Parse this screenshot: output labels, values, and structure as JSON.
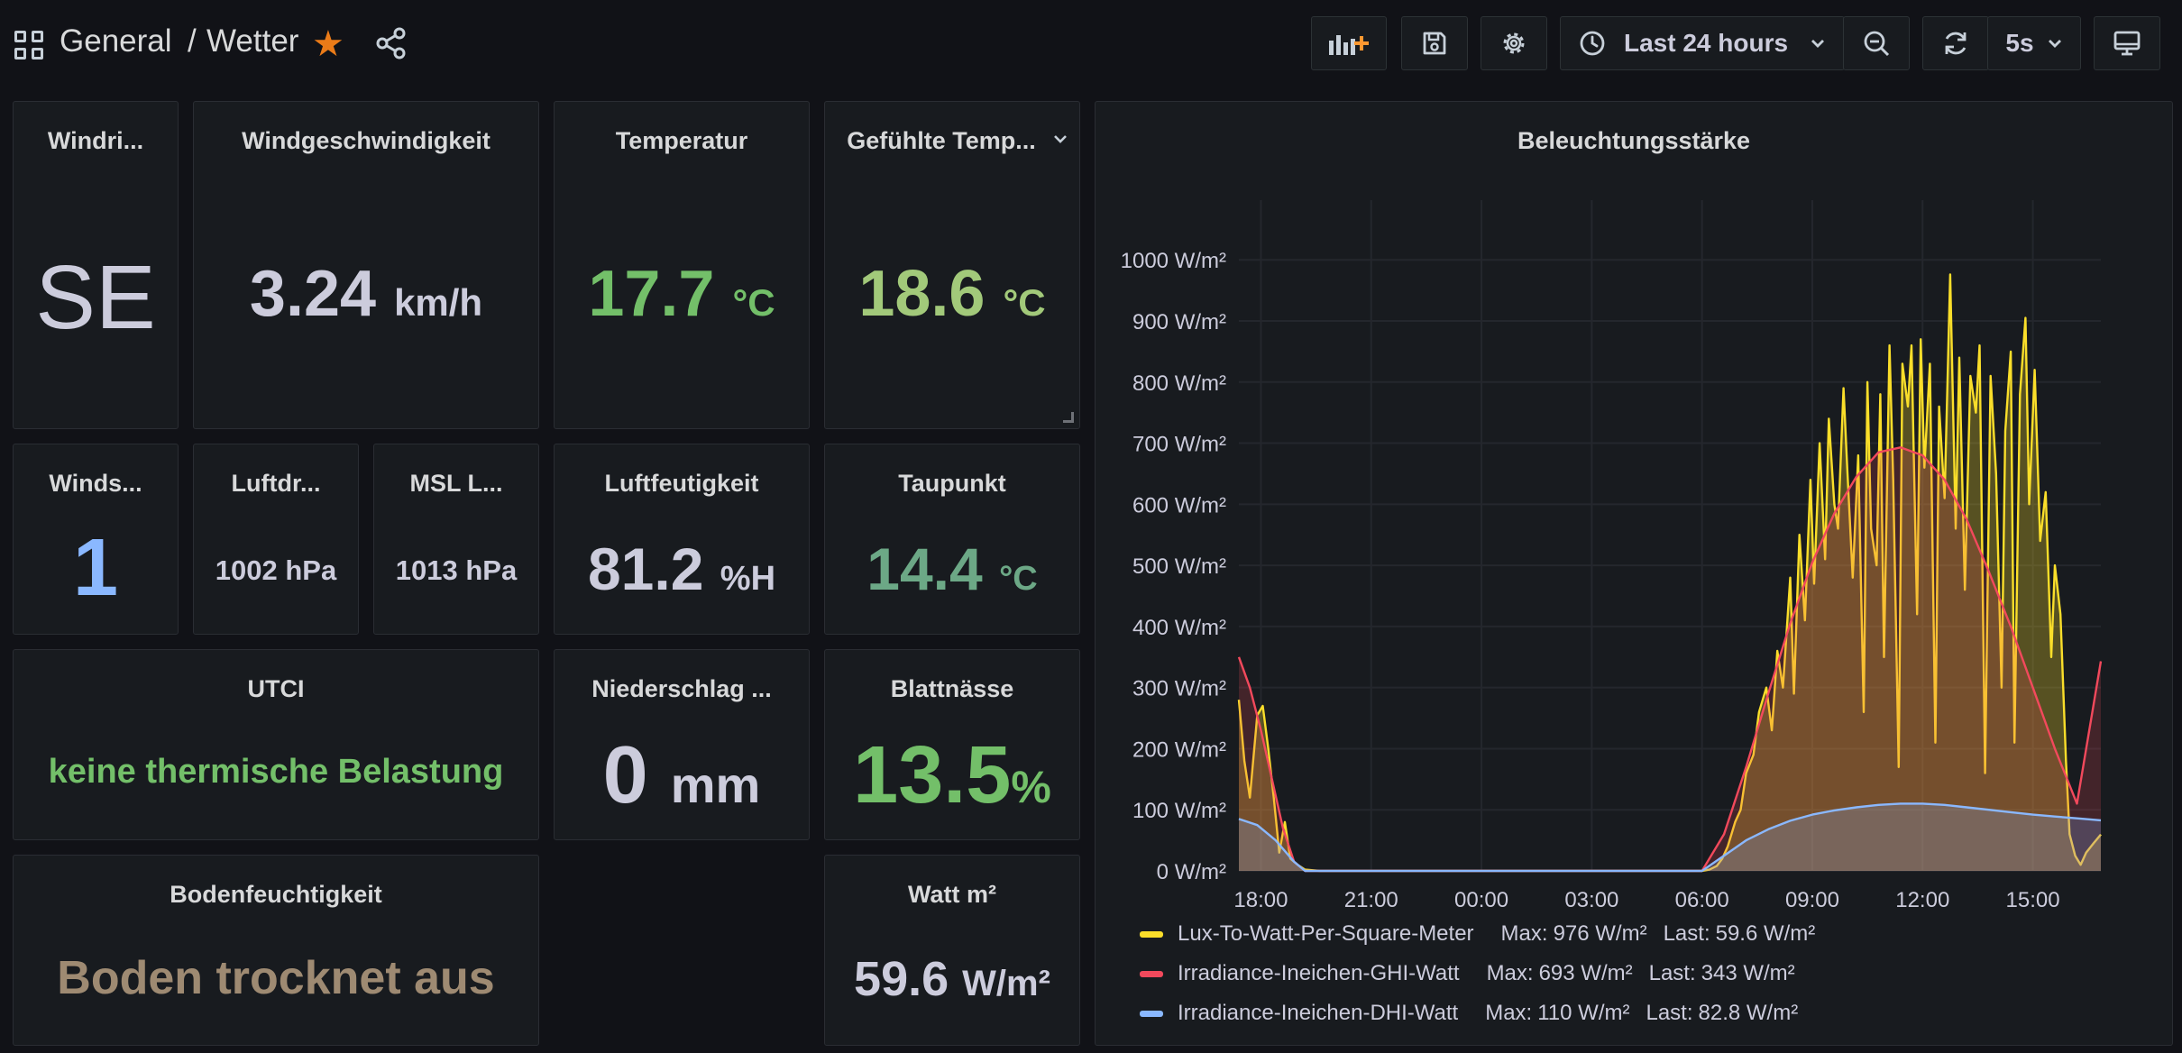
{
  "header": {
    "folder": "General",
    "separator": "/",
    "dashboard": "Wetter"
  },
  "toolbar": {
    "time_range": "Last 24 hours",
    "refresh_interval": "5s"
  },
  "colors": {
    "green": "#73bf69",
    "light_green": "#a2c97a",
    "teal_green": "#6ca886",
    "blue": "#8ab8ff",
    "brown": "#9e8a72",
    "lux_series": "#fade2a",
    "ghi_series": "#f2495c",
    "dhi_series": "#8ab8ff"
  },
  "panels": {
    "windrichtung": {
      "title": "Windri...",
      "value": "SE"
    },
    "windgeschwindigkeit": {
      "title": "Windgeschwindigkeit",
      "value": "3.24",
      "unit": "km/h"
    },
    "temperatur": {
      "title": "Temperatur",
      "value": "17.7",
      "unit": "°C"
    },
    "gefuehlte": {
      "title": "Gefühlte Temp...",
      "value": "18.6",
      "unit": "°C"
    },
    "windstaerke": {
      "title": "Winds...",
      "value": "1"
    },
    "luftdruck": {
      "title": "Luftdr...",
      "value": "1002 hPa"
    },
    "msl": {
      "title": "MSL L...",
      "value": "1013 hPa"
    },
    "luftfeuchtigkeit": {
      "title": "Luftfeutigkeit",
      "value": "81.2",
      "unit": "%H"
    },
    "taupunkt": {
      "title": "Taupunkt",
      "value": "14.4",
      "unit": "°C"
    },
    "utci": {
      "title": "UTCI",
      "value": "keine thermische Belastung"
    },
    "niederschlag": {
      "title": "Niederschlag ...",
      "value": "0",
      "unit": "mm"
    },
    "blattnaesse": {
      "title": "Blattnässe",
      "value": "13.5",
      "unit": "%"
    },
    "bodenfeuchtigkeit": {
      "title": "Bodenfeuchtigkeit",
      "value": "Boden trocknet aus"
    },
    "watt": {
      "title": "Watt m²",
      "value": "59.6",
      "unit": "W/m²"
    }
  },
  "chart_data": {
    "type": "area",
    "title": "Beleuchtungsstärke",
    "x_tick_labels": [
      "18:00",
      "21:00",
      "00:00",
      "03:00",
      "06:00",
      "09:00",
      "12:00",
      "15:00"
    ],
    "y_tick_labels": [
      "0 W/m²",
      "100 W/m²",
      "200 W/m²",
      "300 W/m²",
      "400 W/m²",
      "500 W/m²",
      "600 W/m²",
      "700 W/m²",
      "800 W/m²",
      "900 W/m²",
      "1000 W/m²"
    ],
    "xlim": [
      17.4,
      17.1
    ],
    "ylim": [
      0,
      1080
    ],
    "grid": true,
    "legend_placement": "bottom",
    "series": [
      {
        "name": "Lux-To-Watt-Per-Square-Meter",
        "max": "976 W/m²",
        "last": "59.6 W/m²",
        "values": [
          [
            0,
            280
          ],
          [
            0.15,
            180
          ],
          [
            0.3,
            120
          ],
          [
            0.5,
            255
          ],
          [
            0.65,
            270
          ],
          [
            0.8,
            200
          ],
          [
            0.95,
            120
          ],
          [
            1.1,
            30
          ],
          [
            1.25,
            80
          ],
          [
            1.4,
            20
          ],
          [
            1.6,
            10
          ],
          [
            1.8,
            2
          ],
          [
            2.2,
            0
          ],
          [
            12.6,
            0
          ],
          [
            12.8,
            2
          ],
          [
            13.0,
            8
          ],
          [
            13.15,
            20
          ],
          [
            13.3,
            40
          ],
          [
            13.5,
            80
          ],
          [
            13.65,
            100
          ],
          [
            13.8,
            160
          ],
          [
            14.0,
            190
          ],
          [
            14.15,
            260
          ],
          [
            14.35,
            300
          ],
          [
            14.5,
            230
          ],
          [
            14.65,
            360
          ],
          [
            14.8,
            300
          ],
          [
            15.0,
            480
          ],
          [
            15.1,
            290
          ],
          [
            15.25,
            550
          ],
          [
            15.4,
            410
          ],
          [
            15.55,
            640
          ],
          [
            15.65,
            470
          ],
          [
            15.8,
            700
          ],
          [
            15.95,
            510
          ],
          [
            16.05,
            740
          ],
          [
            16.2,
            600
          ],
          [
            16.3,
            560
          ],
          [
            16.45,
            790
          ],
          [
            16.55,
            660
          ],
          [
            16.7,
            480
          ],
          [
            16.85,
            680
          ],
          [
            17.0,
            260
          ],
          [
            17.1,
            800
          ],
          [
            17.2,
            560
          ],
          [
            17.35,
            500
          ],
          [
            17.45,
            780
          ],
          [
            17.55,
            350
          ],
          [
            17.7,
            860
          ],
          [
            17.8,
            640
          ],
          [
            17.95,
            170
          ],
          [
            18.05,
            830
          ],
          [
            18.2,
            760
          ],
          [
            18.3,
            860
          ],
          [
            18.45,
            420
          ],
          [
            18.55,
            870
          ],
          [
            18.65,
            660
          ],
          [
            18.8,
            830
          ],
          [
            18.95,
            210
          ],
          [
            19.05,
            760
          ],
          [
            19.2,
            610
          ],
          [
            19.35,
            976
          ],
          [
            19.5,
            560
          ],
          [
            19.6,
            840
          ],
          [
            19.75,
            460
          ],
          [
            19.9,
            810
          ],
          [
            20.05,
            750
          ],
          [
            20.15,
            860
          ],
          [
            20.3,
            160
          ],
          [
            20.45,
            810
          ],
          [
            20.6,
            650
          ],
          [
            20.75,
            300
          ],
          [
            20.85,
            720
          ],
          [
            21.0,
            850
          ],
          [
            21.1,
            210
          ],
          [
            21.25,
            780
          ],
          [
            21.4,
            905
          ],
          [
            21.5,
            600
          ],
          [
            21.65,
            820
          ],
          [
            21.8,
            540
          ],
          [
            21.95,
            620
          ],
          [
            22.1,
            350
          ],
          [
            22.2,
            500
          ],
          [
            22.35,
            420
          ],
          [
            22.5,
            180
          ],
          [
            22.6,
            60
          ],
          [
            22.75,
            25
          ],
          [
            22.9,
            10
          ],
          [
            23.05,
            30
          ],
          [
            23.25,
            45
          ],
          [
            23.45,
            59.6
          ]
        ]
      },
      {
        "name": "Irradiance-Ineichen-GHI-Watt",
        "max": "693 W/m²",
        "last": "343 W/m²",
        "values": [
          [
            0,
            350
          ],
          [
            0.3,
            300
          ],
          [
            0.6,
            230
          ],
          [
            0.9,
            150
          ],
          [
            1.2,
            70
          ],
          [
            1.5,
            15
          ],
          [
            1.8,
            0
          ],
          [
            12.6,
            0
          ],
          [
            13.2,
            60
          ],
          [
            13.8,
            170
          ],
          [
            14.4,
            290
          ],
          [
            15.0,
            405
          ],
          [
            15.6,
            505
          ],
          [
            16.2,
            585
          ],
          [
            16.8,
            645
          ],
          [
            17.4,
            685
          ],
          [
            18.0,
            693
          ],
          [
            18.6,
            680
          ],
          [
            19.2,
            640
          ],
          [
            19.8,
            575
          ],
          [
            20.4,
            490
          ],
          [
            21.0,
            400
          ],
          [
            21.6,
            300
          ],
          [
            22.2,
            200
          ],
          [
            22.8,
            110
          ],
          [
            23.45,
            343
          ]
        ]
      },
      {
        "name": "Irradiance-Ineichen-DHI-Watt",
        "max": "110 W/m²",
        "last": "82.8 W/m²",
        "values": [
          [
            0,
            85
          ],
          [
            0.5,
            75
          ],
          [
            1.0,
            50
          ],
          [
            1.5,
            15
          ],
          [
            1.8,
            0
          ],
          [
            12.6,
            0
          ],
          [
            13.2,
            25
          ],
          [
            13.8,
            50
          ],
          [
            14.4,
            68
          ],
          [
            15.0,
            82
          ],
          [
            15.6,
            92
          ],
          [
            16.2,
            99
          ],
          [
            16.8,
            104
          ],
          [
            17.4,
            108
          ],
          [
            18.0,
            110
          ],
          [
            18.6,
            110
          ],
          [
            19.2,
            108
          ],
          [
            19.8,
            104
          ],
          [
            20.4,
            100
          ],
          [
            21.0,
            96
          ],
          [
            21.6,
            92
          ],
          [
            22.2,
            89
          ],
          [
            22.8,
            86
          ],
          [
            23.45,
            82.8
          ]
        ]
      }
    ],
    "legend_labels": {
      "max": "Max:",
      "last": "Last:"
    }
  }
}
